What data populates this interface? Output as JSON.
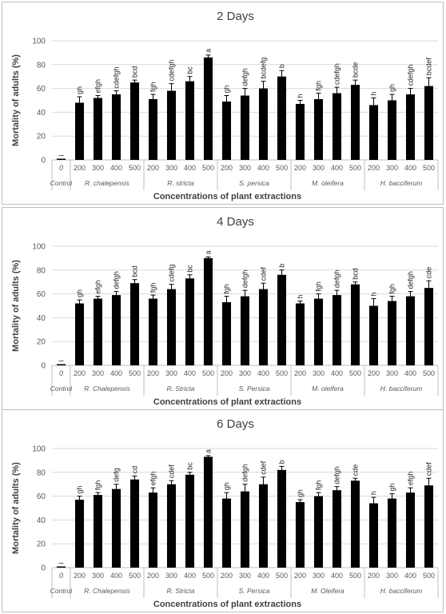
{
  "chart_data": [
    {
      "type": "bar",
      "title": "2 Days",
      "ylabel": "Mortality of adults (%)",
      "xlabel": "Concentrations of plant extractions",
      "ylim": [
        0,
        100
      ],
      "yticks": [
        0,
        20,
        40,
        60,
        80,
        100
      ],
      "grid": true,
      "categories": [
        "0",
        "200",
        "300",
        "400",
        "500",
        "200",
        "300",
        "400",
        "500",
        "200",
        "300",
        "400",
        "500",
        "200",
        "300",
        "400",
        "500",
        "200",
        "300",
        "400",
        "500"
      ],
      "groups": [
        {
          "name": "Control",
          "size": 1
        },
        {
          "name": "R. chalepensis",
          "size": 4
        },
        {
          "name": "R. stricta",
          "size": 4
        },
        {
          "name": "S. persica",
          "size": 4
        },
        {
          "name": "M. oleifera",
          "size": 4
        },
        {
          "name": "H. bacciferum",
          "size": 4
        }
      ],
      "values": [
        1,
        48,
        52,
        55,
        65,
        51,
        58,
        66,
        86,
        49,
        54,
        60,
        70,
        47,
        51,
        56,
        63,
        46,
        50,
        55,
        62
      ],
      "errors": [
        0,
        5,
        2,
        3,
        2,
        4,
        6,
        4,
        2,
        5,
        6,
        6,
        5,
        3,
        5,
        5,
        4,
        6,
        5,
        5,
        7
      ],
      "labels": [
        "i",
        "gh",
        "efgh",
        "cdefgh",
        "bcd",
        "fgh",
        "cdefgh",
        "bc",
        "a",
        "gh",
        "defgh",
        "bcdefg",
        "b",
        "h",
        "fgh",
        "cdefgh",
        "bcde",
        "h",
        "gh",
        "cdefgh",
        "bcdef"
      ],
      "bar_color": "#000000"
    },
    {
      "type": "bar",
      "title": "4 Days",
      "ylabel": "Mortality of adults (%)",
      "xlabel": "Concentrations of plant extractions",
      "ylim": [
        0,
        100
      ],
      "yticks": [
        0,
        20,
        40,
        60,
        80,
        100
      ],
      "grid": true,
      "categories": [
        "0",
        "200",
        "300",
        "400",
        "500",
        "200",
        "300",
        "400",
        "500",
        "200",
        "300",
        "400",
        "500",
        "200",
        "300",
        "400",
        "500",
        "200",
        "300",
        "400",
        "500"
      ],
      "groups": [
        {
          "name": "Control",
          "size": 1
        },
        {
          "name": "R. Chalepensis",
          "size": 4
        },
        {
          "name": "R. Stricta",
          "size": 4
        },
        {
          "name": "S. Persica",
          "size": 4
        },
        {
          "name": "M. olelfera",
          "size": 4
        },
        {
          "name": "H. bacciferum",
          "size": 4
        }
      ],
      "values": [
        1,
        52,
        56,
        59,
        69,
        56,
        64,
        73,
        90,
        53,
        58,
        64,
        76,
        52,
        56,
        59,
        68,
        50,
        54,
        58,
        65
      ],
      "errors": [
        0,
        3,
        2,
        3,
        3,
        3,
        4,
        3,
        1,
        5,
        5,
        5,
        4,
        2,
        4,
        4,
        2,
        6,
        4,
        4,
        6
      ],
      "labels": [
        "i",
        "gh",
        "efgh",
        "defgh",
        "bcd",
        "fgh",
        "cdefg",
        "bc",
        "a",
        "fgh",
        "defgh",
        "cdef",
        "b",
        "h",
        "fgh",
        "defgh",
        "bcd",
        "h",
        "fgh",
        "defgh",
        "cde"
      ],
      "bar_color": "#000000"
    },
    {
      "type": "bar",
      "title": "6 Days",
      "ylabel": "Mortality of adults (%)",
      "xlabel": "Concentrations of plant extractions",
      "ylim": [
        0,
        100
      ],
      "yticks": [
        0,
        20,
        40,
        60,
        80,
        100
      ],
      "grid": true,
      "categories": [
        "0",
        "200",
        "300",
        "400",
        "500",
        "200",
        "300",
        "400",
        "500",
        "200",
        "300",
        "400",
        "500",
        "200",
        "300",
        "400",
        "500",
        "200",
        "300",
        "400",
        "500"
      ],
      "groups": [
        {
          "name": "Control",
          "size": 1
        },
        {
          "name": "R. Chalepensis",
          "size": 4
        },
        {
          "name": "R. Stricta",
          "size": 4
        },
        {
          "name": "S. Persica",
          "size": 4
        },
        {
          "name": "M. Oleifera",
          "size": 4
        },
        {
          "name": "H. bacciferum",
          "size": 4
        }
      ],
      "values": [
        1,
        57,
        61,
        66,
        74,
        63,
        70,
        78,
        93,
        58,
        64,
        70,
        82,
        55,
        60,
        65,
        73,
        54,
        58,
        63,
        69
      ],
      "errors": [
        0,
        3,
        2,
        4,
        3,
        4,
        3,
        2,
        1,
        5,
        6,
        6,
        3,
        2,
        3,
        3,
        2,
        5,
        4,
        4,
        6
      ],
      "labels": [
        "i",
        "gh",
        "fgh",
        "defg",
        "cd",
        "efgh",
        "cdef",
        "bc",
        "a",
        "gh",
        "defgh",
        "cdef",
        "b",
        "gh",
        "fgh",
        "defgh",
        "cde",
        "h",
        "gh",
        "efgh",
        "cdef"
      ],
      "bar_color": "#000000"
    }
  ]
}
